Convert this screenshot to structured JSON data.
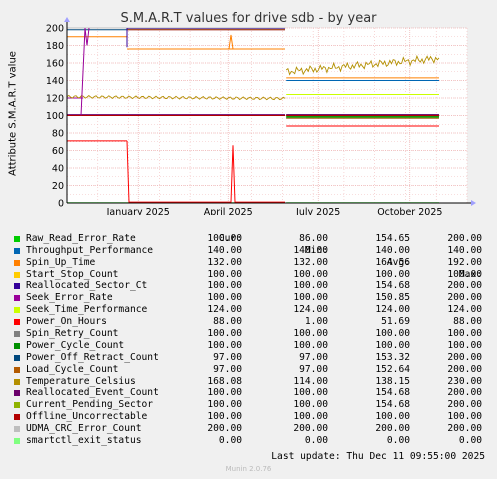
{
  "title": "S.M.A.R.T values for drive sdb - by year",
  "ylabel": "Attribute S.M.A.R.T value",
  "side_text": "RRDTOOL / TOBI OETIKER",
  "footer": {
    "last_update": "Last update: Thu Dec 11 09:55:00 2025",
    "munin": "Munin 2.0.76"
  },
  "legend_headers": {
    "cur": "Cur:",
    "min": "Min:",
    "avg": "Avg:",
    "max": "Max:"
  },
  "chart_data": {
    "type": "line",
    "ylim": [
      0,
      200
    ],
    "yticks": [
      0,
      20,
      40,
      60,
      80,
      100,
      120,
      140,
      160,
      180,
      200
    ],
    "x_tick_labels": [
      "January 2025",
      "April 2025",
      "July 2025",
      "October 2025"
    ],
    "grid": true,
    "series": [
      {
        "name": "Raw_Read_Error_Rate",
        "color": "#00cc00",
        "cur": "100.00",
        "min": "86.00",
        "avg": "154.65",
        "max": "200.00"
      },
      {
        "name": "Throughput_Performance",
        "color": "#0066b3",
        "cur": "140.00",
        "min": "140.00",
        "avg": "140.00",
        "max": "140.00"
      },
      {
        "name": "Spin_Up_Time",
        "color": "#ff8000",
        "cur": "132.00",
        "min": "132.00",
        "avg": "164.56",
        "max": "192.00"
      },
      {
        "name": "Start_Stop_Count",
        "color": "#ffcc00",
        "cur": "100.00",
        "min": "100.00",
        "avg": "100.00",
        "max": "100.00"
      },
      {
        "name": "Reallocated_Sector_Ct",
        "color": "#330099",
        "cur": "100.00",
        "min": "100.00",
        "avg": "154.68",
        "max": "200.00"
      },
      {
        "name": "Seek_Error_Rate",
        "color": "#990099",
        "cur": "100.00",
        "min": "100.00",
        "avg": "150.85",
        "max": "200.00"
      },
      {
        "name": "Seek_Time_Performance",
        "color": "#ccff00",
        "cur": "124.00",
        "min": "124.00",
        "avg": "124.00",
        "max": "124.00"
      },
      {
        "name": "Power_On_Hours",
        "color": "#ff0000",
        "cur": "88.00",
        "min": "1.00",
        "avg": "51.69",
        "max": "88.00"
      },
      {
        "name": "Spin_Retry_Count",
        "color": "#808080",
        "cur": "100.00",
        "min": "100.00",
        "avg": "100.00",
        "max": "100.00"
      },
      {
        "name": "Power_Cycle_Count",
        "color": "#008f00",
        "cur": "100.00",
        "min": "100.00",
        "avg": "100.00",
        "max": "100.00"
      },
      {
        "name": "Power_Off_Retract_Count",
        "color": "#00487d",
        "cur": "97.00",
        "min": "97.00",
        "avg": "153.32",
        "max": "200.00"
      },
      {
        "name": "Load_Cycle_Count",
        "color": "#b35a00",
        "cur": "97.00",
        "min": "97.00",
        "avg": "152.64",
        "max": "200.00"
      },
      {
        "name": "Temperature_Celsius",
        "color": "#b38f00",
        "cur": "168.08",
        "min": "114.00",
        "avg": "138.15",
        "max": "230.00"
      },
      {
        "name": "Reallocated_Event_Count",
        "color": "#6b006b",
        "cur": "100.00",
        "min": "100.00",
        "avg": "154.68",
        "max": "200.00"
      },
      {
        "name": "Current_Pending_Sector",
        "color": "#8fb300",
        "cur": "100.00",
        "min": "100.00",
        "avg": "154.68",
        "max": "200.00"
      },
      {
        "name": "Offline_Uncorrectable",
        "color": "#b30000",
        "cur": "100.00",
        "min": "100.00",
        "avg": "100.00",
        "max": "100.00"
      },
      {
        "name": "UDMA_CRC_Error_Count",
        "color": "#bebebe",
        "cur": "200.00",
        "min": "200.00",
        "avg": "200.00",
        "max": "200.00"
      },
      {
        "name": "smartctl_exit_status",
        "color": "#80ff80",
        "cur": "0.00",
        "min": "0.00",
        "avg": "0.00",
        "max": "0.00"
      }
    ]
  }
}
